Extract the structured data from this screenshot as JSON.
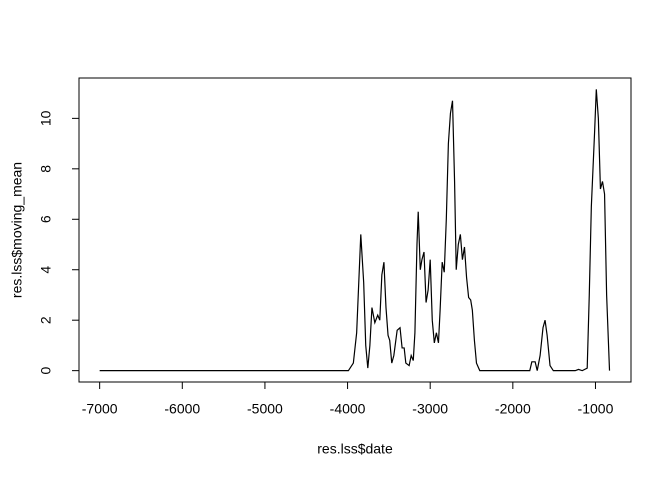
{
  "chart_data": {
    "type": "line",
    "xlabel": "res.lss$date",
    "ylabel": "res.lss$moving_mean",
    "color": "#000000",
    "xlim": [
      -7250,
      -570
    ],
    "ylim": [
      -0.45,
      11.6
    ],
    "xticks": [
      -7000,
      -6000,
      -5000,
      -4000,
      -3000,
      -2000,
      -1000
    ],
    "yticks": [
      0,
      2,
      4,
      6,
      8,
      10
    ],
    "series": [
      {
        "x": [
          -7000,
          -3990,
          -3930,
          -3890,
          -3840,
          -3805,
          -3780,
          -3755,
          -3730,
          -3705,
          -3670,
          -3635,
          -3610,
          -3585,
          -3560,
          -3535,
          -3510,
          -3490,
          -3465,
          -3440,
          -3400,
          -3365,
          -3340,
          -3315,
          -3295,
          -3255,
          -3230,
          -3205,
          -3185,
          -3160,
          -3145,
          -3120,
          -3100,
          -3075,
          -3050,
          -3025,
          -3000,
          -2975,
          -2950,
          -2925,
          -2900,
          -2880,
          -2855,
          -2830,
          -2805,
          -2780,
          -2755,
          -2730,
          -2705,
          -2685,
          -2660,
          -2635,
          -2610,
          -2585,
          -2560,
          -2535,
          -2510,
          -2490,
          -2465,
          -2440,
          -2400,
          -1795,
          -1770,
          -1730,
          -1705,
          -1670,
          -1635,
          -1610,
          -1585,
          -1550,
          -1510,
          -1245,
          -1205,
          -1160,
          -1100,
          -1075,
          -1050,
          -1010,
          -990,
          -965,
          -940,
          -915,
          -890,
          -865,
          -830
        ],
        "values": [
          0,
          0,
          0.3,
          1.5,
          5.4,
          3.5,
          1,
          0.1,
          1,
          2.5,
          1.9,
          2.2,
          2.0,
          3.8,
          4.3,
          2.5,
          1.4,
          1.2,
          0.3,
          0.6,
          1.6,
          1.7,
          0.9,
          0.9,
          0.3,
          0.2,
          0.6,
          0.4,
          1.5,
          5.0,
          6.3,
          4.0,
          4.4,
          4.7,
          2.7,
          3.2,
          4.4,
          2.0,
          1.1,
          1.5,
          1.1,
          2.4,
          4.3,
          3.9,
          6.0,
          9.0,
          10.2,
          10.7,
          7.5,
          4.0,
          5.0,
          5.4,
          4.4,
          4.9,
          3.7,
          2.9,
          2.8,
          2.4,
          1.2,
          0.3,
          0,
          0,
          0.35,
          0.35,
          0,
          0.6,
          1.7,
          2.0,
          1.4,
          0.2,
          0,
          0,
          0.05,
          0,
          0.1,
          3.0,
          6.5,
          9.5,
          11.15,
          10,
          7.2,
          7.5,
          7,
          3,
          0
        ]
      }
    ]
  }
}
